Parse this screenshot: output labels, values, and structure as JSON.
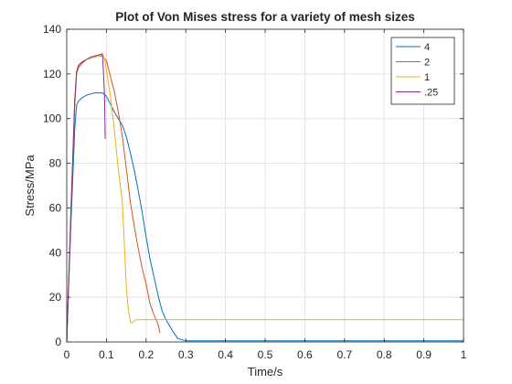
{
  "chart_data": {
    "type": "line",
    "title": "Plot of Von Mises stress for a variety of mesh sizes",
    "xlabel": "Time/s",
    "ylabel": "Stress/MPa",
    "xlim": [
      0,
      1
    ],
    "ylim": [
      0,
      140
    ],
    "xticks": [
      0,
      0.1,
      0.2,
      0.3,
      0.4,
      0.5,
      0.6,
      0.7,
      0.8,
      0.9,
      1
    ],
    "xtick_labels": [
      "0",
      "0.1",
      "0.2",
      "0.3",
      "0.4",
      "0.5",
      "0.6",
      "0.7",
      "0.8",
      "0.9",
      "1"
    ],
    "yticks": [
      0,
      20,
      40,
      60,
      80,
      100,
      120,
      140
    ],
    "ytick_labels": [
      "0",
      "20",
      "40",
      "60",
      "80",
      "100",
      "120",
      "140"
    ],
    "grid": true,
    "legend_position": "top-right",
    "series": [
      {
        "name": "4",
        "color": "#0072BD",
        "points": [
          [
            0,
            0
          ],
          [
            0.01,
            50
          ],
          [
            0.02,
            95
          ],
          [
            0.025,
            106
          ],
          [
            0.03,
            108
          ],
          [
            0.04,
            109.5
          ],
          [
            0.05,
            110.5
          ],
          [
            0.06,
            111
          ],
          [
            0.07,
            111.5
          ],
          [
            0.08,
            111.5
          ],
          [
            0.09,
            111.5
          ],
          [
            0.1,
            110
          ],
          [
            0.11,
            106.5
          ],
          [
            0.12,
            103
          ],
          [
            0.13,
            100
          ],
          [
            0.14,
            97
          ],
          [
            0.15,
            92
          ],
          [
            0.16,
            85
          ],
          [
            0.17,
            77
          ],
          [
            0.18,
            68
          ],
          [
            0.19,
            58
          ],
          [
            0.2,
            47
          ],
          [
            0.21,
            37
          ],
          [
            0.22,
            29
          ],
          [
            0.23,
            21
          ],
          [
            0.24,
            14
          ],
          [
            0.25,
            10
          ],
          [
            0.26,
            7
          ],
          [
            0.27,
            4
          ],
          [
            0.28,
            1.5
          ],
          [
            0.3,
            0.5
          ],
          [
            0.35,
            0.5
          ],
          [
            1,
            0.5
          ]
        ]
      },
      {
        "name": "2",
        "color": "#D95319",
        "points": [
          [
            0,
            0
          ],
          [
            0.01,
            55
          ],
          [
            0.02,
            105
          ],
          [
            0.025,
            120
          ],
          [
            0.03,
            123
          ],
          [
            0.04,
            125
          ],
          [
            0.05,
            126.5
          ],
          [
            0.06,
            127
          ],
          [
            0.07,
            127.5
          ],
          [
            0.08,
            128
          ],
          [
            0.09,
            128
          ],
          [
            0.1,
            126
          ],
          [
            0.11,
            119
          ],
          [
            0.12,
            112
          ],
          [
            0.13,
            103
          ],
          [
            0.14,
            92
          ],
          [
            0.15,
            78
          ],
          [
            0.16,
            63
          ],
          [
            0.17,
            52
          ],
          [
            0.18,
            42
          ],
          [
            0.19,
            33
          ],
          [
            0.2,
            26
          ],
          [
            0.21,
            17
          ],
          [
            0.22,
            12
          ],
          [
            0.23,
            8
          ],
          [
            0.235,
            4
          ]
        ]
      },
      {
        "name": "1",
        "color": "#EDB120",
        "points": [
          [
            0,
            0
          ],
          [
            0.01,
            55
          ],
          [
            0.02,
            108
          ],
          [
            0.025,
            121
          ],
          [
            0.03,
            124
          ],
          [
            0.04,
            125.5
          ],
          [
            0.05,
            126.5
          ],
          [
            0.06,
            127
          ],
          [
            0.07,
            127.5
          ],
          [
            0.08,
            128
          ],
          [
            0.09,
            128.5
          ],
          [
            0.095,
            127
          ],
          [
            0.1,
            122
          ],
          [
            0.11,
            110
          ],
          [
            0.12,
            95
          ],
          [
            0.13,
            77
          ],
          [
            0.14,
            63
          ],
          [
            0.145,
            45
          ],
          [
            0.15,
            25
          ],
          [
            0.155,
            15
          ],
          [
            0.16,
            9
          ],
          [
            0.165,
            8.5
          ],
          [
            0.17,
            9.5
          ],
          [
            0.175,
            10
          ],
          [
            0.2,
            10
          ],
          [
            1,
            10
          ]
        ]
      },
      {
        "name": ".25",
        "color": "#7E2F8E",
        "points": [
          [
            0,
            0
          ],
          [
            0.01,
            55
          ],
          [
            0.02,
            108
          ],
          [
            0.025,
            121
          ],
          [
            0.03,
            124
          ],
          [
            0.04,
            125.5
          ],
          [
            0.05,
            126.5
          ],
          [
            0.06,
            127.5
          ],
          [
            0.07,
            128
          ],
          [
            0.08,
            128.5
          ],
          [
            0.09,
            129
          ],
          [
            0.095,
            112
          ],
          [
            0.097,
            91
          ]
        ]
      }
    ]
  }
}
